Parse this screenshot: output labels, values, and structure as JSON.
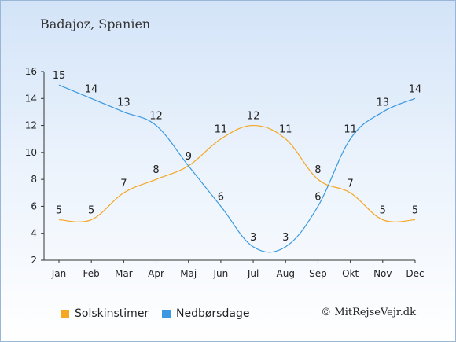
{
  "header": {
    "location": "Badajoz, Spanien"
  },
  "footer": {
    "credit": "© MitRejseVejr.dk"
  },
  "colors": {
    "sun": "#f5a623",
    "rain": "#3a99e0",
    "axis": "#333333",
    "grid": "#dde6f0"
  },
  "chart_data": {
    "type": "line",
    "categories": [
      "Jan",
      "Feb",
      "Mar",
      "Apr",
      "Maj",
      "Jun",
      "Jul",
      "Aug",
      "Sep",
      "Okt",
      "Nov",
      "Dec"
    ],
    "ylim": [
      2,
      16
    ],
    "yticks": [
      2,
      4,
      6,
      8,
      10,
      12,
      14,
      16
    ],
    "grid": false,
    "legend_position": "bottom",
    "series": [
      {
        "name": "Solskinstimer",
        "color": "#f5a623",
        "values": [
          5,
          5,
          7,
          8,
          9,
          11,
          12,
          11,
          8,
          7,
          5,
          5
        ]
      },
      {
        "name": "Nedbørsdage",
        "color": "#3a99e0",
        "values": [
          15,
          14,
          13,
          12,
          9,
          6,
          3,
          3,
          6,
          11,
          13,
          14
        ]
      }
    ]
  }
}
